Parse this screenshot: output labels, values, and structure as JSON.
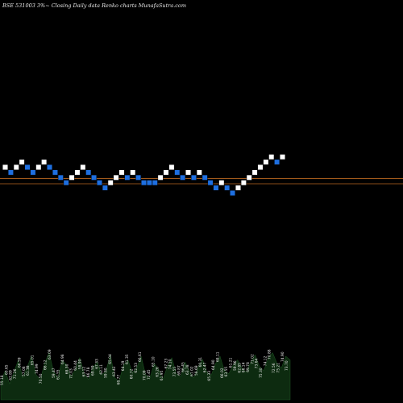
{
  "title": "BSE 531003 3%~ Closing Daily data Renko charts MunafaSutra.com",
  "chart_data": {
    "type": "renko",
    "bricks": [
      {
        "level": 0,
        "direction": "up"
      },
      {
        "level": -1,
        "direction": "down"
      },
      {
        "level": 0,
        "direction": "up"
      },
      {
        "level": 1,
        "direction": "up"
      },
      {
        "level": 0,
        "direction": "down"
      },
      {
        "level": -1,
        "direction": "down"
      },
      {
        "level": 0,
        "direction": "up"
      },
      {
        "level": 1,
        "direction": "up"
      },
      {
        "level": 0,
        "direction": "down"
      },
      {
        "level": -1,
        "direction": "down"
      },
      {
        "level": -2,
        "direction": "down"
      },
      {
        "level": -3,
        "direction": "down"
      },
      {
        "level": -2,
        "direction": "up"
      },
      {
        "level": -1,
        "direction": "up"
      },
      {
        "level": 0,
        "direction": "up"
      },
      {
        "level": -1,
        "direction": "down"
      },
      {
        "level": -2,
        "direction": "down"
      },
      {
        "level": -3,
        "direction": "down"
      },
      {
        "level": -4,
        "direction": "down"
      },
      {
        "level": -3,
        "direction": "up"
      },
      {
        "level": -2,
        "direction": "up"
      },
      {
        "level": -1,
        "direction": "up"
      },
      {
        "level": -2,
        "direction": "down"
      },
      {
        "level": -1,
        "direction": "up"
      },
      {
        "level": -2,
        "direction": "down"
      },
      {
        "level": -3,
        "direction": "down"
      },
      {
        "level": -3,
        "direction": "down"
      },
      {
        "level": -3,
        "direction": "down"
      },
      {
        "level": -2,
        "direction": "up"
      },
      {
        "level": -1,
        "direction": "up"
      },
      {
        "level": 0,
        "direction": "up"
      },
      {
        "level": -1,
        "direction": "down"
      },
      {
        "level": -2,
        "direction": "down"
      },
      {
        "level": -1,
        "direction": "up"
      },
      {
        "level": -2,
        "direction": "down"
      },
      {
        "level": -1,
        "direction": "up"
      },
      {
        "level": -2,
        "direction": "down"
      },
      {
        "level": -3,
        "direction": "down"
      },
      {
        "level": -4,
        "direction": "down"
      },
      {
        "level": -3,
        "direction": "up"
      },
      {
        "level": -4,
        "direction": "down"
      },
      {
        "level": -5,
        "direction": "down"
      },
      {
        "level": -4,
        "direction": "up"
      },
      {
        "level": -3,
        "direction": "up"
      },
      {
        "level": -2,
        "direction": "up"
      },
      {
        "level": -1,
        "direction": "up"
      },
      {
        "level": 0,
        "direction": "up"
      },
      {
        "level": 1,
        "direction": "up"
      },
      {
        "level": 2,
        "direction": "up"
      },
      {
        "level": 1,
        "direction": "down"
      },
      {
        "level": 2,
        "direction": "up"
      }
    ],
    "reference_lines": [
      {
        "level": -2.2,
        "color": "#b8661f"
      },
      {
        "level": -3.2,
        "color": "#b8661f"
      }
    ],
    "volume_labels": [
      "55.18",
      "60.65",
      "62.89",
      "71.26",
      "66.59",
      "57.08",
      "61.38",
      "65.01",
      "74.99",
      "70.50",
      "66.12",
      "63.09",
      "59.47",
      "61.55",
      "64.98",
      "68.30",
      "72.03",
      "60.44",
      "58.90",
      "63.12",
      "66.78",
      "69.59",
      "67.33",
      "62.11",
      "59.80",
      "65.04",
      "63.42",
      "68.77",
      "64.19",
      "61.35",
      "60.72",
      "62.53",
      "66.61",
      "70.09",
      "72.45",
      "65.10",
      "63.26",
      "61.95",
      "67.23",
      "74.10",
      "73.55",
      "69.87",
      "66.45",
      "63.78",
      "61.02",
      "58.69",
      "60.31",
      "62.47",
      "65.33",
      "64.90",
      "68.11",
      "66.02",
      "63.55",
      "61.21",
      "59.96",
      "62.85",
      "66.14",
      "69.78",
      "71.02",
      "73.64",
      "75.30",
      "74.12",
      "70.88",
      "72.56",
      "75.21",
      "74.90",
      "73.70"
    ],
    "volume_values": [
      25,
      40,
      22,
      38,
      55,
      30,
      45,
      60,
      35,
      28,
      50,
      65,
      40,
      30,
      55,
      48,
      32,
      42,
      58,
      36,
      28,
      45,
      52,
      34,
      40,
      62,
      30,
      26,
      48,
      55,
      38,
      44,
      60,
      35,
      30,
      50,
      42,
      28,
      46,
      58,
      36,
      32,
      52,
      40,
      30,
      45,
      56,
      38,
      34,
      50,
      60,
      40,
      36,
      48,
      55,
      44,
      38,
      52,
      62,
      46,
      40,
      58,
      65,
      50,
      44,
      60,
      55
    ]
  }
}
